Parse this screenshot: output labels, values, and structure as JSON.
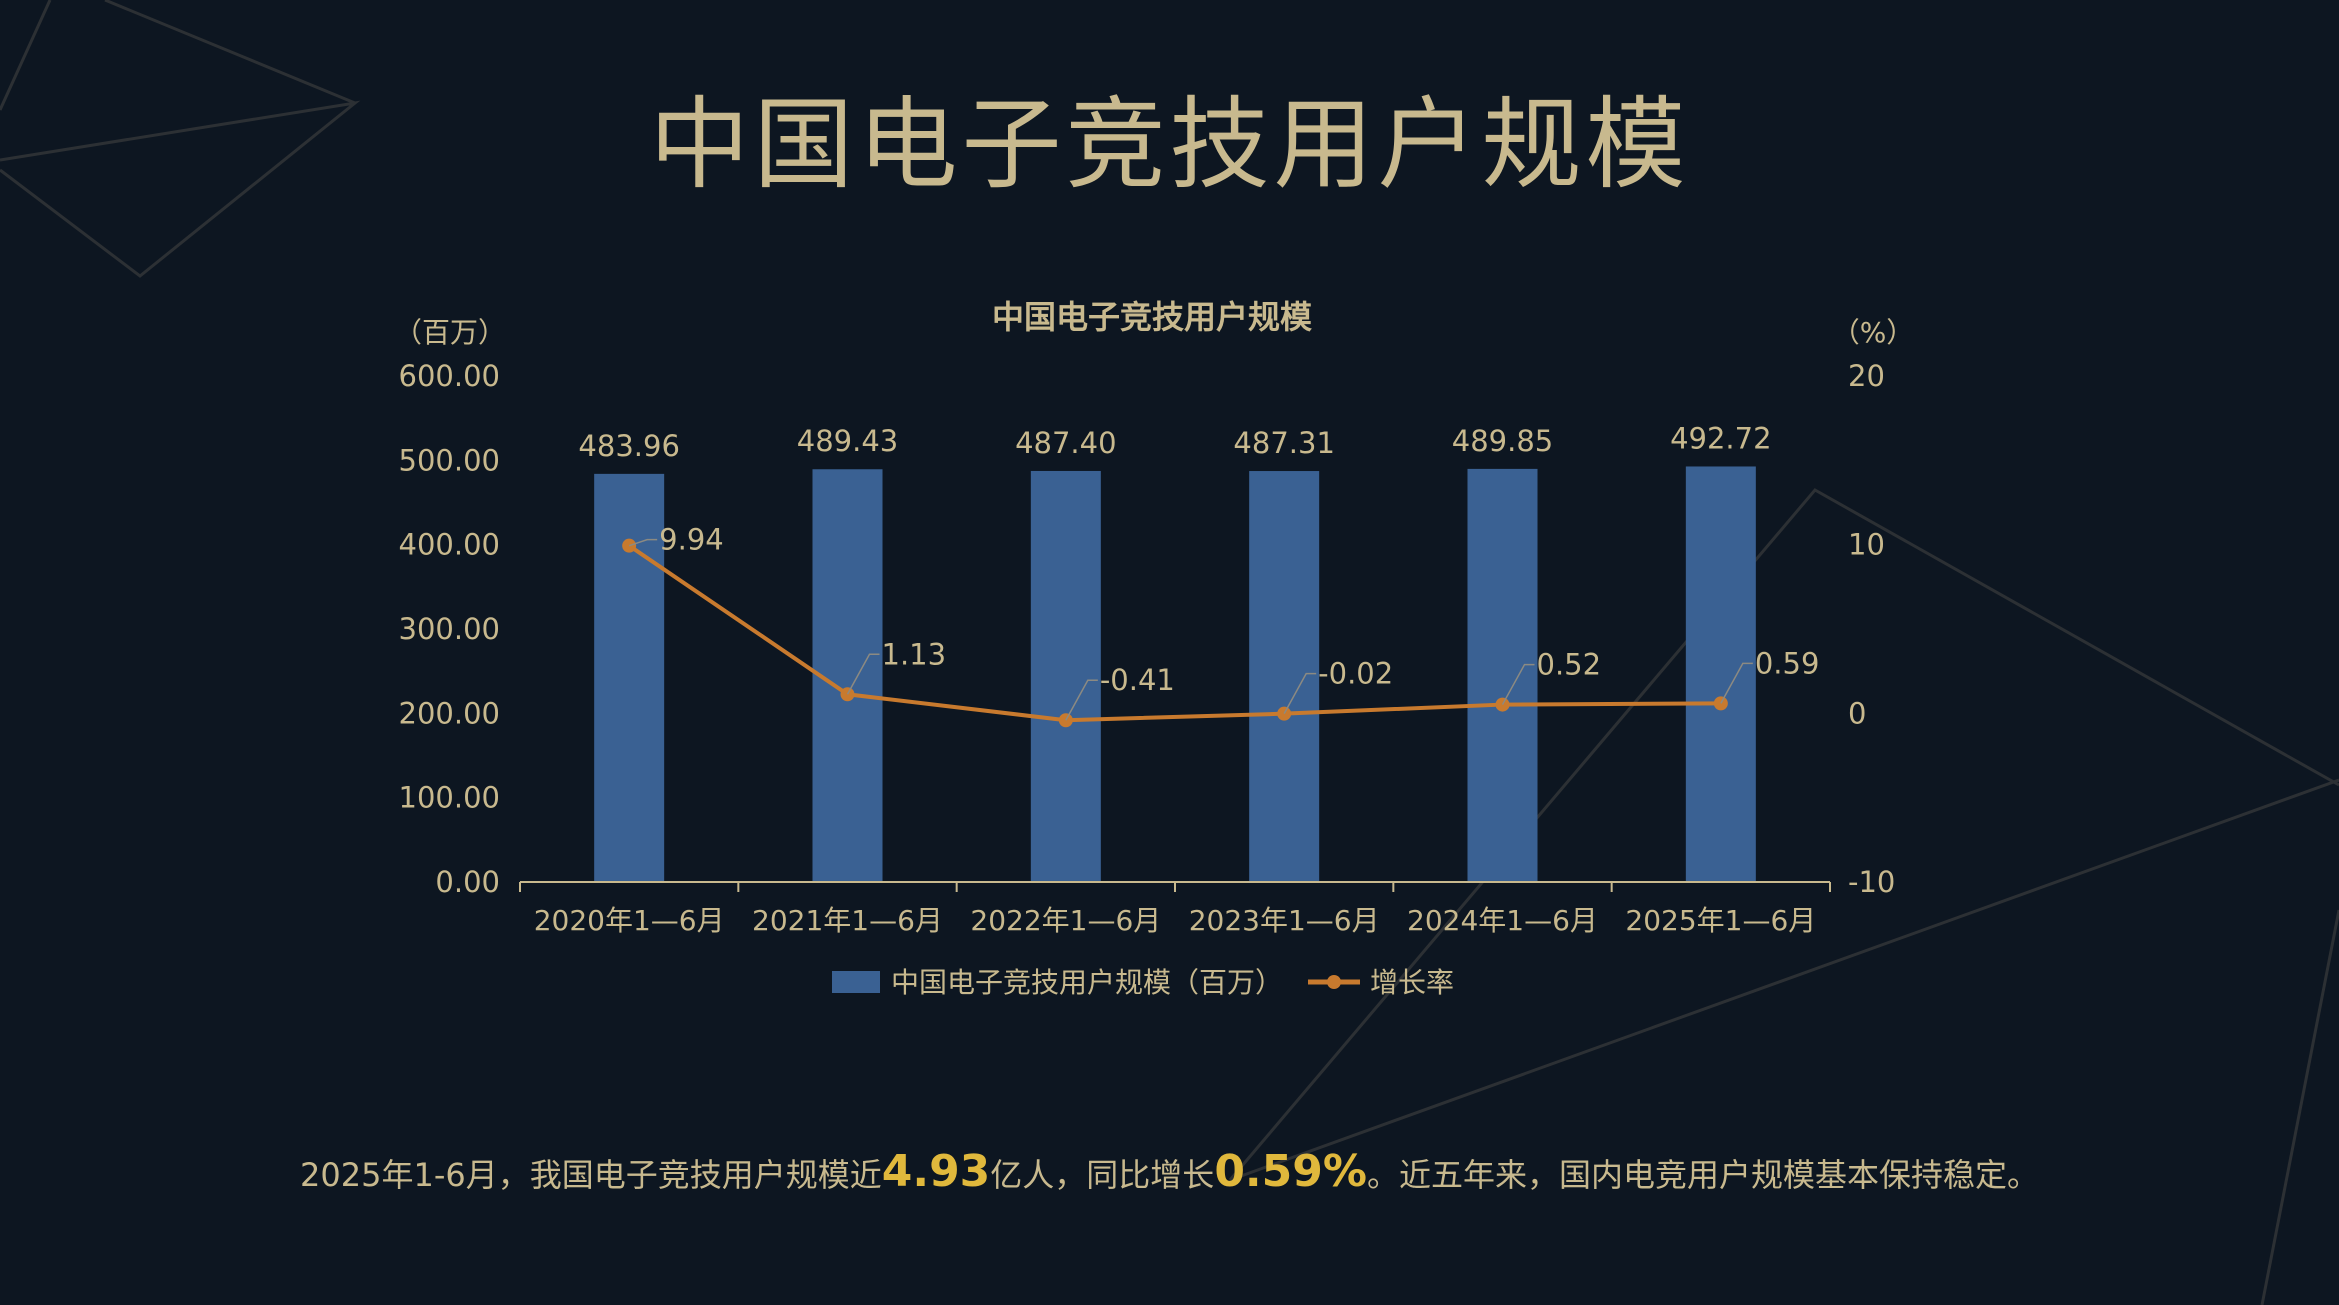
{
  "page": {
    "title": "中国电子竞技用户规模",
    "summary": {
      "pre": "2025年1-6月，我国电子竞技用户规模近",
      "hl1": "4.93",
      "mid": "亿人，同比增长",
      "hl2": "0.59%",
      "post": "。近五年来，国内电竞用户规模基本保持稳定。"
    }
  },
  "colors": {
    "background": "#0d1621",
    "text": "#c8b98e",
    "bar": "#3a6193",
    "line": "#c87a2e",
    "highlight": "#e0b83c",
    "deco": "#2c3034"
  },
  "chart_data": {
    "type": "bar",
    "title": "中国电子竞技用户规模",
    "categories": [
      "2020年1—6月",
      "2021年1—6月",
      "2022年1—6月",
      "2023年1—6月",
      "2024年1—6月",
      "2025年1—6月"
    ],
    "left_axis": {
      "unit": "（百万）",
      "ticks": [
        "0.00",
        "100.00",
        "200.00",
        "300.00",
        "400.00",
        "500.00",
        "600.00"
      ],
      "ylim": [
        0,
        600
      ]
    },
    "right_axis": {
      "unit": "（%）",
      "ticks": [
        "-10",
        "0",
        "10",
        "20"
      ],
      "ylim": [
        -10,
        20
      ]
    },
    "series": [
      {
        "name": "中国电子竞技用户规模（百万）",
        "type": "bar",
        "axis": "left",
        "values": [
          483.96,
          489.43,
          487.4,
          487.31,
          489.85,
          492.72
        ],
        "labels": [
          "483.96",
          "489.43",
          "487.40",
          "487.31",
          "489.85",
          "492.72"
        ]
      },
      {
        "name": "增长率",
        "type": "line",
        "axis": "right",
        "values": [
          9.94,
          1.13,
          -0.41,
          -0.02,
          0.52,
          0.59
        ],
        "labels": [
          "9.94",
          "1.13",
          "-0.41",
          "-0.02",
          "0.52",
          "0.59"
        ]
      }
    ],
    "legend_position": "bottom",
    "grid": false
  }
}
